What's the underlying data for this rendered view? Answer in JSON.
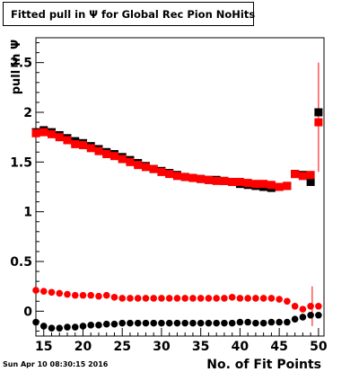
{
  "chart_data": {
    "type": "scatter",
    "title": "Fitted pull in Ψ for Global Rec Pion NoHits",
    "xlabel": "No. of Fit Points",
    "ylabel": "pull in Ψ",
    "xlim": [
      14,
      50.7
    ],
    "ylim": [
      -0.25,
      2.75
    ],
    "xticks": [
      15,
      20,
      25,
      30,
      35,
      40,
      45,
      50
    ],
    "yticks": [
      0,
      0.5,
      1,
      1.5,
      2,
      2.5
    ],
    "xtick_labels": [
      "15",
      "20",
      "25",
      "30",
      "35",
      "40",
      "45",
      "50"
    ],
    "ytick_labels": [
      "0",
      "0.5",
      "1",
      "1.5",
      "2",
      "2.5"
    ],
    "grid": false,
    "series": [
      {
        "marker": "square",
        "color": "#000000",
        "x": [
          14,
          15,
          16,
          17,
          18,
          19,
          20,
          21,
          22,
          23,
          24,
          25,
          26,
          27,
          28,
          29,
          30,
          31,
          32,
          33,
          34,
          35,
          36,
          37,
          38,
          39,
          40,
          41,
          42,
          43,
          44,
          45,
          46,
          47,
          48,
          49,
          50
        ],
        "y": [
          1.8,
          1.82,
          1.8,
          1.77,
          1.74,
          1.71,
          1.69,
          1.66,
          1.63,
          1.6,
          1.58,
          1.55,
          1.52,
          1.49,
          1.46,
          1.43,
          1.41,
          1.39,
          1.37,
          1.35,
          1.34,
          1.33,
          1.32,
          1.32,
          1.31,
          1.3,
          1.28,
          1.27,
          1.26,
          1.25,
          1.24,
          1.25,
          1.26,
          1.38,
          1.37,
          1.3,
          2.0
        ]
      },
      {
        "marker": "square",
        "color": "#ff0000",
        "x": [
          14,
          15,
          16,
          17,
          18,
          19,
          20,
          21,
          22,
          23,
          24,
          25,
          26,
          27,
          28,
          29,
          30,
          31,
          32,
          33,
          34,
          35,
          36,
          37,
          38,
          39,
          40,
          41,
          42,
          43,
          44,
          45,
          46,
          47,
          48,
          49,
          50
        ],
        "y": [
          1.79,
          1.8,
          1.78,
          1.75,
          1.72,
          1.68,
          1.67,
          1.64,
          1.61,
          1.58,
          1.56,
          1.53,
          1.5,
          1.47,
          1.45,
          1.43,
          1.4,
          1.38,
          1.36,
          1.35,
          1.34,
          1.33,
          1.32,
          1.31,
          1.31,
          1.3,
          1.3,
          1.29,
          1.28,
          1.28,
          1.27,
          1.25,
          1.26,
          1.38,
          1.36,
          1.37,
          1.9
        ]
      },
      {
        "marker": "circle",
        "color": "#ff0000",
        "x": [
          14,
          15,
          16,
          17,
          18,
          19,
          20,
          21,
          22,
          23,
          24,
          25,
          26,
          27,
          28,
          29,
          30,
          31,
          32,
          33,
          34,
          35,
          36,
          37,
          38,
          39,
          40,
          41,
          42,
          43,
          44,
          45,
          46,
          47,
          48,
          49,
          50
        ],
        "y": [
          0.21,
          0.2,
          0.19,
          0.18,
          0.17,
          0.16,
          0.16,
          0.16,
          0.15,
          0.16,
          0.14,
          0.13,
          0.13,
          0.13,
          0.13,
          0.13,
          0.13,
          0.13,
          0.13,
          0.13,
          0.13,
          0.13,
          0.13,
          0.13,
          0.13,
          0.14,
          0.13,
          0.13,
          0.13,
          0.13,
          0.13,
          0.12,
          0.1,
          0.05,
          0.02,
          0.05,
          0.05
        ]
      },
      {
        "marker": "circle",
        "color": "#000000",
        "x": [
          14,
          15,
          16,
          17,
          18,
          19,
          20,
          21,
          22,
          23,
          24,
          25,
          26,
          27,
          28,
          29,
          30,
          31,
          32,
          33,
          34,
          35,
          36,
          37,
          38,
          39,
          40,
          41,
          42,
          43,
          44,
          45,
          46,
          47,
          48,
          49,
          50
        ],
        "y": [
          -0.11,
          -0.15,
          -0.17,
          -0.17,
          -0.16,
          -0.16,
          -0.15,
          -0.14,
          -0.14,
          -0.13,
          -0.13,
          -0.12,
          -0.12,
          -0.12,
          -0.12,
          -0.12,
          -0.12,
          -0.12,
          -0.12,
          -0.12,
          -0.12,
          -0.12,
          -0.12,
          -0.12,
          -0.12,
          -0.12,
          -0.11,
          -0.11,
          -0.12,
          -0.12,
          -0.11,
          -0.11,
          -0.11,
          -0.08,
          -0.06,
          -0.04,
          -0.04
        ]
      }
    ]
  },
  "footer": {
    "date": "Sun Apr 10 08:30:15 2016"
  }
}
